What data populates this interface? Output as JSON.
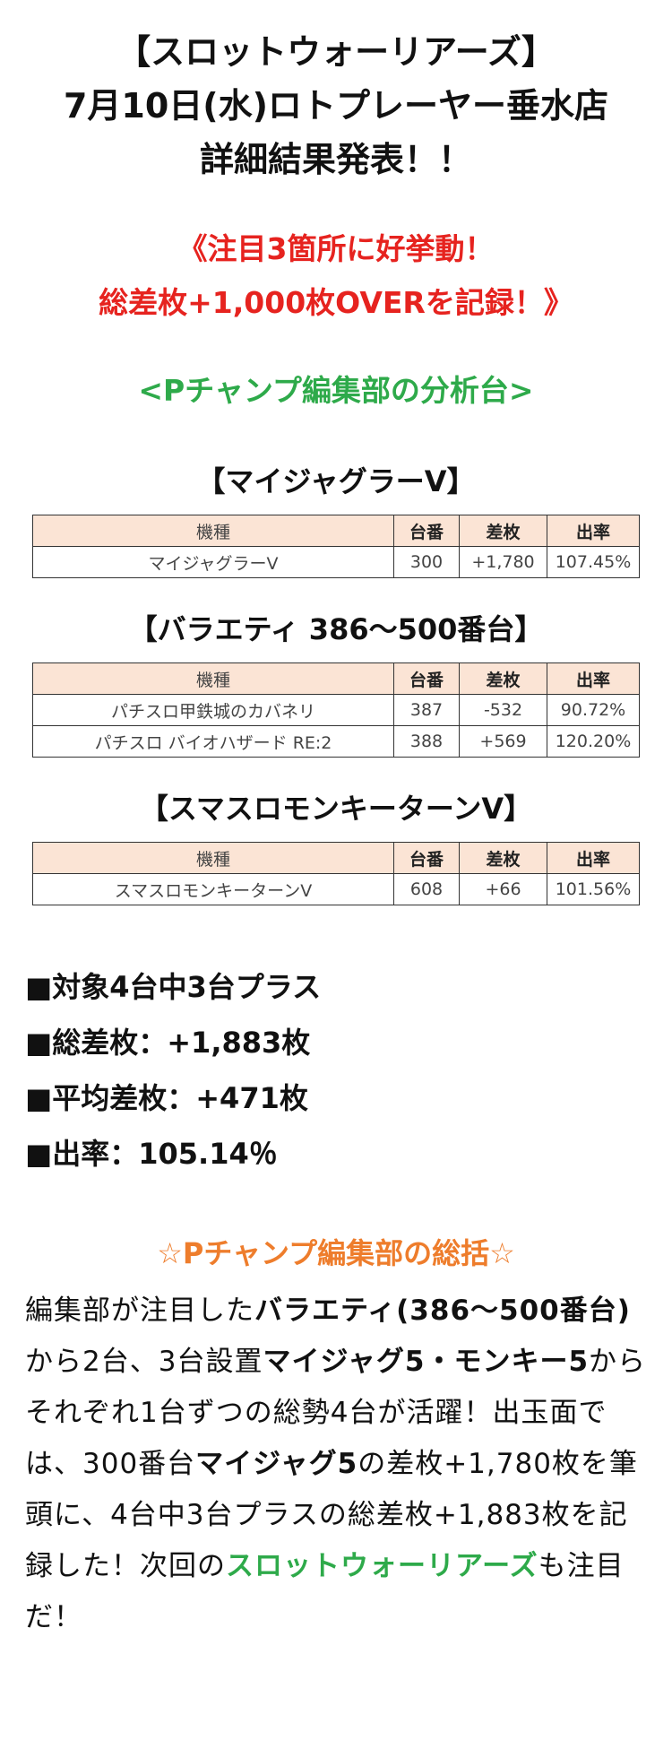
{
  "header": {
    "line1": "【スロットウォーリアーズ】",
    "line2": "7月10日(水)ロトプレーヤー垂水店",
    "line3": "詳細結果発表！！"
  },
  "catch": {
    "line1": "《注目3箇所に好挙動！",
    "line2": "総差枚+1,000枚OVERを記録！》"
  },
  "analysis_heading": "<Pチャンプ編集部の分析台>",
  "table_headers": {
    "model": "機種",
    "machine_no": "台番",
    "diff": "差枚",
    "rate": "出率"
  },
  "sections": [
    {
      "title": "【マイジャグラーV】",
      "rows": [
        {
          "model": "マイジャグラーV",
          "machine_no": "300",
          "diff": "+1,780",
          "rate": "107.45%"
        }
      ]
    },
    {
      "title": "【バラエティ 386〜500番台】",
      "rows": [
        {
          "model": "パチスロ甲鉄城のカバネリ",
          "machine_no": "387",
          "diff": "-532",
          "rate": "90.72%"
        },
        {
          "model": "パチスロ バイオハザード RE:2",
          "machine_no": "388",
          "diff": "+569",
          "rate": "120.20%"
        }
      ]
    },
    {
      "title": "【スマスロモンキーターンV】",
      "rows": [
        {
          "model": "スマスロモンキーターンV",
          "machine_no": "608",
          "diff": "+66",
          "rate": "101.56%"
        }
      ]
    }
  ],
  "summary": {
    "item1": "■対象4台中3台プラス",
    "item2": "■総差枚：+1,883枚",
    "item3": "■平均差枚：+471枚",
    "item4": "■出率：105.14％"
  },
  "conclusion": {
    "heading": "☆Pチャンプ編集部の総括☆",
    "t1": "編集部が注目した",
    "b1": "バラエティ(386〜500番台)",
    "t2": "から2台、3台設置",
    "b2": "マイジャグ5・モンキー5",
    "t3": "からそれぞれ1台ずつの総勢4台が活躍！出玉面では、300番台",
    "b3": "マイジャグ5",
    "t4": "の差枚+1,780枚を筆頭に、4台中3台プラスの総差枚+1,883枚を記録した！次回の",
    "g1": "スロットウォーリアーズ",
    "t5": "も注目だ！"
  }
}
